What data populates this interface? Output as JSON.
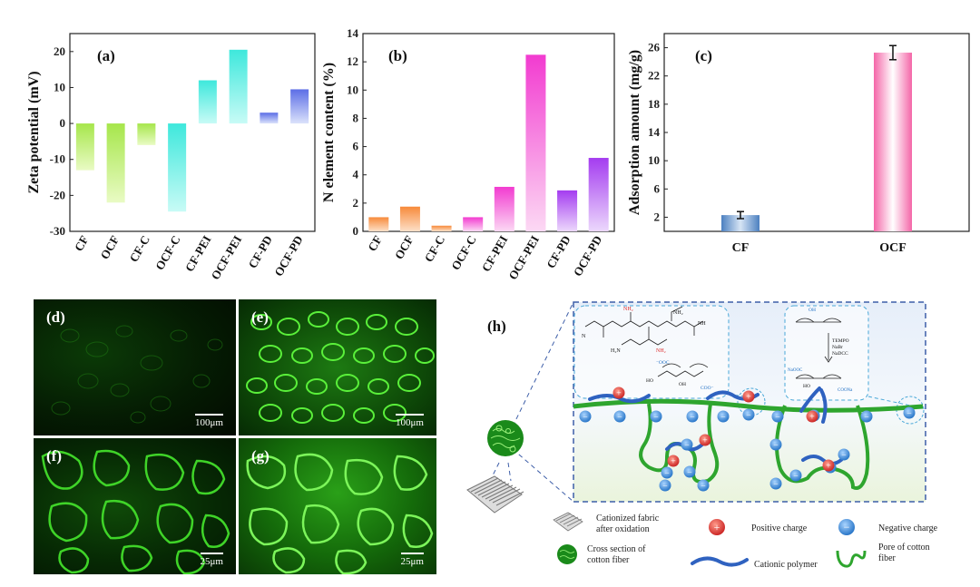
{
  "chart_data": [
    {
      "type": "bar",
      "panel_label": "(a)",
      "ylabel": "Zeta potential (mV)",
      "ylim": [
        -30,
        25
      ],
      "yticks": [
        "20",
        "10",
        "0",
        "-10",
        "-20",
        "-30"
      ],
      "categories": [
        "CF",
        "OCF",
        "CF-C",
        "OCF-C",
        "CF-PEI",
        "OCF-PEI",
        "CF-PD",
        "OCF-PD"
      ],
      "values": [
        -13,
        -22,
        -6,
        -24.5,
        12,
        20.5,
        3,
        9.5
      ]
    },
    {
      "type": "bar",
      "panel_label": "(b)",
      "ylabel": "N element content (%)",
      "ylim": [
        0,
        14
      ],
      "yticks": [
        "0",
        "2",
        "4",
        "6",
        "8",
        "10",
        "12",
        "14"
      ],
      "categories": [
        "CF",
        "OCF",
        "CF-C",
        "OCF-C",
        "CF-PEI",
        "OCF-PEI",
        "CF-PD",
        "OCF-PD"
      ],
      "values": [
        1.0,
        1.75,
        0.4,
        1.0,
        3.15,
        12.5,
        2.9,
        5.2
      ]
    },
    {
      "type": "bar",
      "panel_label": "(c)",
      "ylabel": "Adsorption amount (mg/g)",
      "ylim": [
        0,
        28
      ],
      "yticks": [
        "2",
        "6",
        "10",
        "14",
        "18",
        "22",
        "26"
      ],
      "categories": [
        "CF",
        "OCF"
      ],
      "values": [
        2.3,
        25.3
      ],
      "errors": [
        0.5,
        1.0
      ]
    }
  ],
  "micrographs": [
    {
      "label": "(d)",
      "scale": "100μm"
    },
    {
      "label": "(e)",
      "scale": "100μm"
    },
    {
      "label": "(f)",
      "scale": "25μm"
    },
    {
      "label": "(g)",
      "scale": "25μm"
    }
  ],
  "schematic": {
    "label": "(h)",
    "pei_structure_text": {
      "nh2": "NH₂",
      "nh": "NH",
      "h2n": "H₂N",
      "n": "N"
    },
    "cellulose_text": {
      "coo": "COO⁻",
      "ooc": "⁻OOC",
      "ho": "HO",
      "oh": "OH",
      "oh2": "OH"
    },
    "oxidation_text": {
      "tempo": "TEMPO",
      "nabr": "NaBr",
      "nadcc": "NaDCC",
      "ona": "NaOOC",
      "coona": "COONa"
    },
    "legend": {
      "fabric": "Cationized fabric after oxidation",
      "cross_section": "Cross section of cotton fiber",
      "positive": "Positive charge",
      "negative": "Negative charge",
      "polymer": "Cationic polymer",
      "pore": "Pore of cotton fiber"
    },
    "charges": {
      "plus": "+",
      "minus": "−"
    }
  }
}
